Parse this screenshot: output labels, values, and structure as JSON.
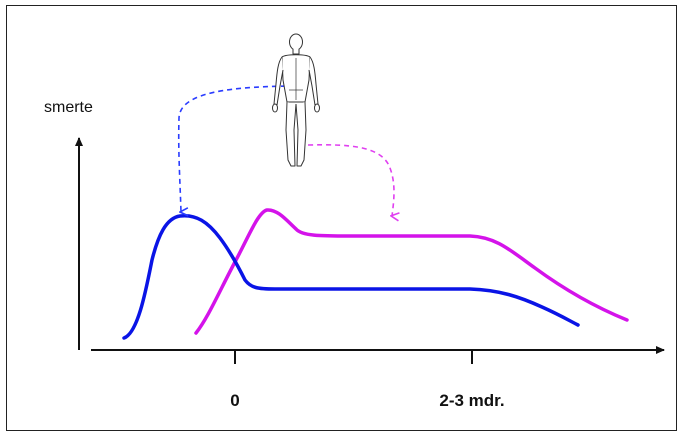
{
  "y_axis_label": "smerte",
  "x_ticks": [
    {
      "label": "0"
    },
    {
      "label": "2-3 mdr."
    }
  ],
  "figure_icon": "human-body-back-view-icon",
  "colors": {
    "curve_blue": "#0a14e6",
    "curve_magenta": "#d413ea",
    "axis": "#111111",
    "arrow_blue": "#2a3cff",
    "arrow_magenta": "#e040f0"
  }
}
